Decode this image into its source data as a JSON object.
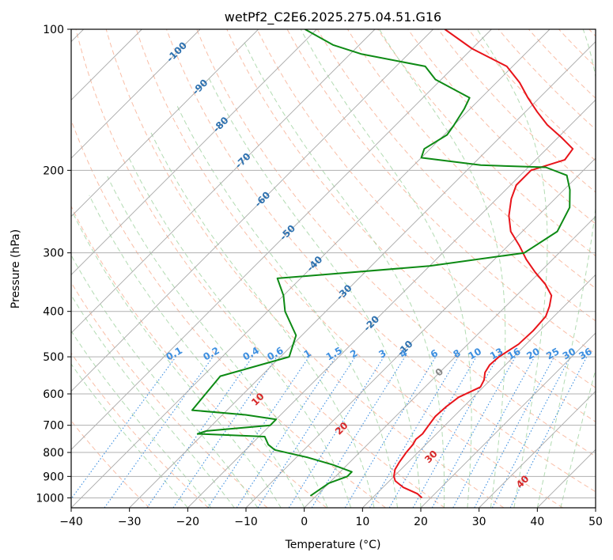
{
  "chart_data": {
    "type": "line",
    "subtype": "skew-t log-p diagram",
    "title": "wetPf2_C2E6.2025.275.04.51.G16",
    "xlabel": "Temperature (°C)",
    "ylabel": "Pressure (hPa)",
    "xlim": [
      -40,
      50
    ],
    "ylim": [
      1050,
      100
    ],
    "yscale": "log",
    "x_ticks": [
      -40,
      -30,
      -20,
      -10,
      0,
      10,
      20,
      30,
      40,
      50
    ],
    "y_ticks": [
      100,
      200,
      300,
      400,
      500,
      600,
      700,
      800,
      900,
      1000
    ],
    "grid": true,
    "colors": {
      "temperature": "#e8141a",
      "dewpoint": "#0d8a14",
      "isotherm": "#a8a8a8",
      "dry_adiabat": "#f7a889",
      "moist_adiabat": "#9fd29f",
      "mixing_ratio": "#3d8fe0",
      "isotherm_label": "#2f72b0",
      "dry_label": "#d62728",
      "zero_isotherm_label": "#888888"
    },
    "isotherm_labels": [
      "-100",
      "-90",
      "-80",
      "-70",
      "-60",
      "-50",
      "-40",
      "-30",
      "-20",
      "-10",
      "0"
    ],
    "mixing_ratio_labels": [
      "0.1",
      "0.2",
      "0.4",
      "0.6",
      "1",
      "1.5",
      "2",
      "3",
      "4",
      "6",
      "8",
      "10",
      "13",
      "16",
      "20",
      "25",
      "30",
      "36"
    ],
    "dry_adiabat_labels": [
      "10",
      "20",
      "30",
      "40"
    ],
    "series": [
      {
        "name": "Temperature",
        "points": [
          [
            1000,
            18.5
          ],
          [
            980,
            17.0
          ],
          [
            950,
            13.5
          ],
          [
            920,
            11.0
          ],
          [
            900,
            10.0
          ],
          [
            870,
            9.0
          ],
          [
            840,
            8.5
          ],
          [
            800,
            8.0
          ],
          [
            770,
            7.8
          ],
          [
            750,
            7.4
          ],
          [
            730,
            7.6
          ],
          [
            700,
            7.2
          ],
          [
            670,
            6.8
          ],
          [
            640,
            7.0
          ],
          [
            610,
            7.5
          ],
          [
            580,
            9.5
          ],
          [
            560,
            8.9
          ],
          [
            540,
            7.8
          ],
          [
            520,
            7.3
          ],
          [
            500,
            7.5
          ],
          [
            470,
            8.7
          ],
          [
            440,
            8.9
          ],
          [
            410,
            8.6
          ],
          [
            390,
            7.5
          ],
          [
            370,
            6.0
          ],
          [
            350,
            3.0
          ],
          [
            330,
            -0.8
          ],
          [
            310,
            -4.5
          ],
          [
            290,
            -8.0
          ],
          [
            270,
            -12.0
          ],
          [
            250,
            -15.0
          ],
          [
            230,
            -17.5
          ],
          [
            215,
            -19.0
          ],
          [
            200,
            -19.0
          ],
          [
            190,
            -15.0
          ],
          [
            180,
            -15.5
          ],
          [
            170,
            -19.5
          ],
          [
            160,
            -24.0
          ],
          [
            150,
            -28.0
          ],
          [
            140,
            -32.0
          ],
          [
            130,
            -36.0
          ],
          [
            120,
            -41.0
          ],
          [
            110,
            -50.0
          ],
          [
            100,
            -58.0
          ]
        ]
      },
      {
        "name": "Dewpoint",
        "points": [
          [
            990,
            -1.0
          ],
          [
            960,
            -0.5
          ],
          [
            930,
            0.0
          ],
          [
            900,
            2.0
          ],
          [
            880,
            2.0
          ],
          [
            850,
            -2.5
          ],
          [
            820,
            -8.0
          ],
          [
            790,
            -15.0
          ],
          [
            770,
            -17.0
          ],
          [
            740,
            -19.0
          ],
          [
            730,
            -31.0
          ],
          [
            720,
            -30.0
          ],
          [
            700,
            -20.0
          ],
          [
            680,
            -20.0
          ],
          [
            665,
            -26.0
          ],
          [
            650,
            -36.0
          ],
          [
            550,
            -37.0
          ],
          [
            500,
            -28.5
          ],
          [
            450,
            -31.0
          ],
          [
            400,
            -37.0
          ],
          [
            370,
            -40.0
          ],
          [
            340,
            -44.0
          ],
          [
            320,
            -20.0
          ],
          [
            300,
            -6.0
          ],
          [
            270,
            -4.0
          ],
          [
            240,
            -6.0
          ],
          [
            220,
            -9.0
          ],
          [
            205,
            -12.0
          ],
          [
            197,
            -17.0
          ],
          [
            195,
            -28.5
          ],
          [
            188,
            -40.0
          ],
          [
            180,
            -41.0
          ],
          [
            168,
            -39.5
          ],
          [
            160,
            -40.0
          ],
          [
            148,
            -41.0
          ],
          [
            140,
            -42.0
          ],
          [
            128,
            -51.0
          ],
          [
            120,
            -55.0
          ],
          [
            113,
            -68.0
          ],
          [
            108,
            -74.5
          ],
          [
            100,
            -82.0
          ]
        ]
      }
    ]
  }
}
